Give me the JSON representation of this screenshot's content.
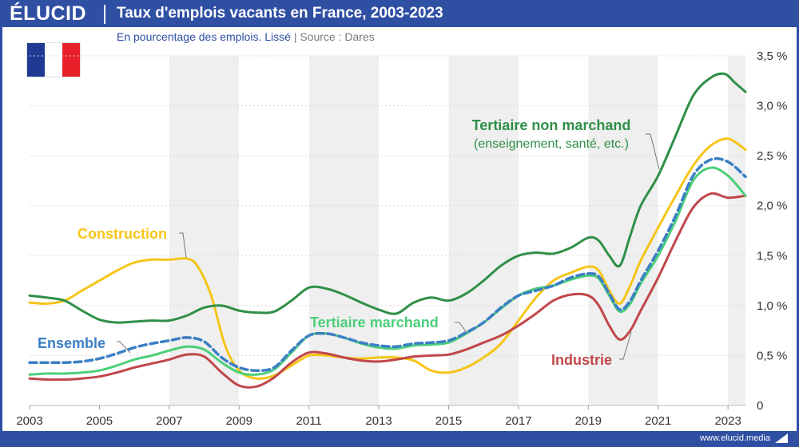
{
  "header": {
    "brand": "ÉLUCID",
    "title": "Taux d'emplois vacants en France, 2003-2023"
  },
  "subtitle": {
    "text": "En pourcentage des emplois. Lissé",
    "separator": "|",
    "source": "Source : Dares"
  },
  "footer": {
    "url": "www.elucid.media"
  },
  "flag": {
    "colors": [
      "#1f3a93",
      "#ffffff",
      "#e8202a"
    ]
  },
  "chart_data": {
    "type": "line",
    "title": "Taux d'emplois vacants en France, 2003-2023",
    "subtitle": "En pourcentage des emplois. Lissé",
    "xlim": [
      2003,
      2023.5
    ],
    "ylim": [
      0,
      3.5
    ],
    "x_ticks": [
      {
        "value": 2003,
        "label": "2003"
      },
      {
        "value": 2005,
        "label": "2005"
      },
      {
        "value": 2007,
        "label": "2007"
      },
      {
        "value": 2009,
        "label": "2009"
      },
      {
        "value": 2011,
        "label": "2011"
      },
      {
        "value": 2013,
        "label": "2013"
      },
      {
        "value": 2015,
        "label": "2015"
      },
      {
        "value": 2017,
        "label": "2017"
      },
      {
        "value": 2019,
        "label": "2019"
      },
      {
        "value": 2021,
        "label": "2021"
      },
      {
        "value": 2023,
        "label": "2023"
      }
    ],
    "y_ticks": [
      {
        "value": 0,
        "label": "0"
      },
      {
        "value": 0.5,
        "label": "0,5 %"
      },
      {
        "value": 1.0,
        "label": "1,0 %"
      },
      {
        "value": 1.5,
        "label": "1,5 %"
      },
      {
        "value": 2.0,
        "label": "2,0 %"
      },
      {
        "value": 2.5,
        "label": "2,5 %"
      },
      {
        "value": 3.0,
        "label": "3,0 %"
      },
      {
        "value": 3.5,
        "label": "3,5 %"
      }
    ],
    "shaded_bands": [
      [
        2007,
        2009
      ],
      [
        2011,
        2013
      ],
      [
        2015,
        2017
      ],
      [
        2019,
        2021
      ],
      [
        2023,
        2023.5
      ]
    ],
    "series": [
      {
        "key": "construction",
        "name": "Construction",
        "color": "#f5c518",
        "dashed": false,
        "label_lines": [
          "Construction"
        ],
        "points": [
          [
            2003,
            1.03
          ],
          [
            2003.5,
            1.02
          ],
          [
            2004,
            1.05
          ],
          [
            2004.5,
            1.15
          ],
          [
            2005,
            1.25
          ],
          [
            2005.5,
            1.35
          ],
          [
            2006,
            1.43
          ],
          [
            2006.5,
            1.46
          ],
          [
            2007,
            1.46
          ],
          [
            2007.5,
            1.47
          ],
          [
            2007.8,
            1.4
          ],
          [
            2008.2,
            1.1
          ],
          [
            2008.6,
            0.6
          ],
          [
            2009,
            0.35
          ],
          [
            2009.5,
            0.27
          ],
          [
            2010,
            0.3
          ],
          [
            2010.5,
            0.4
          ],
          [
            2011,
            0.5
          ],
          [
            2011.5,
            0.5
          ],
          [
            2012,
            0.48
          ],
          [
            2012.5,
            0.47
          ],
          [
            2013,
            0.48
          ],
          [
            2013.5,
            0.48
          ],
          [
            2014,
            0.45
          ],
          [
            2014.5,
            0.35
          ],
          [
            2015,
            0.33
          ],
          [
            2015.5,
            0.38
          ],
          [
            2016,
            0.48
          ],
          [
            2016.5,
            0.62
          ],
          [
            2017,
            0.85
          ],
          [
            2017.5,
            1.08
          ],
          [
            2018,
            1.25
          ],
          [
            2018.5,
            1.33
          ],
          [
            2019,
            1.39
          ],
          [
            2019.3,
            1.35
          ],
          [
            2019.6,
            1.15
          ],
          [
            2019.9,
            1.02
          ],
          [
            2020.2,
            1.2
          ],
          [
            2020.5,
            1.45
          ],
          [
            2021,
            1.78
          ],
          [
            2021.5,
            2.1
          ],
          [
            2022,
            2.4
          ],
          [
            2022.5,
            2.6
          ],
          [
            2023,
            2.67
          ],
          [
            2023.5,
            2.56
          ]
        ]
      },
      {
        "key": "tertiaire-nm",
        "name": "Tertiaire non marchand",
        "color": "#2f8f47",
        "dashed": false,
        "label_lines": [
          "Tertiaire non marchand",
          "(enseignement, santé, etc.)"
        ],
        "points": [
          [
            2003,
            1.1
          ],
          [
            2003.5,
            1.08
          ],
          [
            2004,
            1.05
          ],
          [
            2004.5,
            0.95
          ],
          [
            2005,
            0.86
          ],
          [
            2005.5,
            0.83
          ],
          [
            2006,
            0.84
          ],
          [
            2006.5,
            0.85
          ],
          [
            2007,
            0.85
          ],
          [
            2007.5,
            0.9
          ],
          [
            2008,
            0.98
          ],
          [
            2008.5,
            1.0
          ],
          [
            2009,
            0.95
          ],
          [
            2009.5,
            0.93
          ],
          [
            2010,
            0.94
          ],
          [
            2010.5,
            1.05
          ],
          [
            2011,
            1.18
          ],
          [
            2011.5,
            1.17
          ],
          [
            2012,
            1.11
          ],
          [
            2012.5,
            1.03
          ],
          [
            2013,
            0.96
          ],
          [
            2013.5,
            0.92
          ],
          [
            2014,
            1.03
          ],
          [
            2014.5,
            1.08
          ],
          [
            2015,
            1.05
          ],
          [
            2015.5,
            1.12
          ],
          [
            2016,
            1.25
          ],
          [
            2016.5,
            1.4
          ],
          [
            2017,
            1.5
          ],
          [
            2017.5,
            1.53
          ],
          [
            2018,
            1.52
          ],
          [
            2018.5,
            1.58
          ],
          [
            2019,
            1.68
          ],
          [
            2019.3,
            1.65
          ],
          [
            2019.6,
            1.5
          ],
          [
            2019.9,
            1.4
          ],
          [
            2020.2,
            1.7
          ],
          [
            2020.5,
            2.0
          ],
          [
            2021,
            2.3
          ],
          [
            2021.5,
            2.7
          ],
          [
            2022,
            3.1
          ],
          [
            2022.5,
            3.28
          ],
          [
            2022.9,
            3.32
          ],
          [
            2023.2,
            3.23
          ],
          [
            2023.5,
            3.14
          ]
        ]
      },
      {
        "key": "ensemble",
        "name": "Ensemble",
        "color": "#3b7fc4",
        "dashed": true,
        "label_lines": [
          "Ensemble"
        ],
        "points": [
          [
            2003,
            0.43
          ],
          [
            2003.5,
            0.43
          ],
          [
            2004,
            0.43
          ],
          [
            2004.5,
            0.44
          ],
          [
            2005,
            0.47
          ],
          [
            2005.5,
            0.52
          ],
          [
            2006,
            0.58
          ],
          [
            2006.5,
            0.62
          ],
          [
            2007,
            0.65
          ],
          [
            2007.5,
            0.68
          ],
          [
            2008,
            0.64
          ],
          [
            2008.5,
            0.48
          ],
          [
            2009,
            0.38
          ],
          [
            2009.5,
            0.35
          ],
          [
            2010,
            0.38
          ],
          [
            2010.5,
            0.55
          ],
          [
            2011,
            0.7
          ],
          [
            2011.5,
            0.72
          ],
          [
            2012,
            0.68
          ],
          [
            2012.5,
            0.63
          ],
          [
            2013,
            0.6
          ],
          [
            2013.5,
            0.59
          ],
          [
            2014,
            0.62
          ],
          [
            2014.5,
            0.63
          ],
          [
            2015,
            0.65
          ],
          [
            2015.5,
            0.73
          ],
          [
            2016,
            0.83
          ],
          [
            2016.5,
            0.98
          ],
          [
            2017,
            1.1
          ],
          [
            2017.5,
            1.15
          ],
          [
            2018,
            1.2
          ],
          [
            2018.5,
            1.28
          ],
          [
            2019,
            1.32
          ],
          [
            2019.3,
            1.29
          ],
          [
            2019.6,
            1.12
          ],
          [
            2019.9,
            0.96
          ],
          [
            2020.2,
            1.05
          ],
          [
            2020.5,
            1.25
          ],
          [
            2021,
            1.55
          ],
          [
            2021.5,
            1.9
          ],
          [
            2022,
            2.3
          ],
          [
            2022.5,
            2.46
          ],
          [
            2023,
            2.44
          ],
          [
            2023.5,
            2.29
          ]
        ]
      },
      {
        "key": "tertiaire-m",
        "name": "Tertiaire marchand",
        "color": "#4ccf7a",
        "dashed": false,
        "label_lines": [
          "Tertiaire marchand"
        ],
        "points": [
          [
            2003,
            0.31
          ],
          [
            2003.5,
            0.32
          ],
          [
            2004,
            0.32
          ],
          [
            2004.5,
            0.33
          ],
          [
            2005,
            0.35
          ],
          [
            2005.5,
            0.4
          ],
          [
            2006,
            0.46
          ],
          [
            2006.5,
            0.5
          ],
          [
            2007,
            0.55
          ],
          [
            2007.5,
            0.59
          ],
          [
            2008,
            0.56
          ],
          [
            2008.5,
            0.43
          ],
          [
            2009,
            0.33
          ],
          [
            2009.5,
            0.31
          ],
          [
            2010,
            0.36
          ],
          [
            2010.5,
            0.53
          ],
          [
            2011,
            0.7
          ],
          [
            2011.5,
            0.72
          ],
          [
            2012,
            0.68
          ],
          [
            2012.5,
            0.62
          ],
          [
            2013,
            0.58
          ],
          [
            2013.5,
            0.57
          ],
          [
            2014,
            0.6
          ],
          [
            2014.5,
            0.61
          ],
          [
            2015,
            0.63
          ],
          [
            2015.5,
            0.72
          ],
          [
            2016,
            0.83
          ],
          [
            2016.5,
            0.97
          ],
          [
            2017,
            1.1
          ],
          [
            2017.5,
            1.17
          ],
          [
            2018,
            1.2
          ],
          [
            2018.5,
            1.26
          ],
          [
            2019,
            1.3
          ],
          [
            2019.3,
            1.27
          ],
          [
            2019.6,
            1.1
          ],
          [
            2019.9,
            0.94
          ],
          [
            2020.2,
            1.02
          ],
          [
            2020.5,
            1.22
          ],
          [
            2021,
            1.5
          ],
          [
            2021.5,
            1.85
          ],
          [
            2022,
            2.25
          ],
          [
            2022.5,
            2.38
          ],
          [
            2023,
            2.3
          ],
          [
            2023.5,
            2.1
          ]
        ]
      },
      {
        "key": "industrie",
        "name": "Industrie",
        "color": "#c0474a",
        "dashed": false,
        "label_lines": [
          "Industrie"
        ],
        "points": [
          [
            2003,
            0.27
          ],
          [
            2003.5,
            0.26
          ],
          [
            2004,
            0.26
          ],
          [
            2004.5,
            0.27
          ],
          [
            2005,
            0.29
          ],
          [
            2005.5,
            0.33
          ],
          [
            2006,
            0.38
          ],
          [
            2006.5,
            0.42
          ],
          [
            2007,
            0.46
          ],
          [
            2007.5,
            0.51
          ],
          [
            2008,
            0.49
          ],
          [
            2008.5,
            0.33
          ],
          [
            2009,
            0.2
          ],
          [
            2009.5,
            0.19
          ],
          [
            2010,
            0.28
          ],
          [
            2010.5,
            0.43
          ],
          [
            2011,
            0.53
          ],
          [
            2011.5,
            0.52
          ],
          [
            2012,
            0.48
          ],
          [
            2012.5,
            0.45
          ],
          [
            2013,
            0.44
          ],
          [
            2013.5,
            0.46
          ],
          [
            2014,
            0.49
          ],
          [
            2014.5,
            0.5
          ],
          [
            2015,
            0.51
          ],
          [
            2015.5,
            0.56
          ],
          [
            2016,
            0.63
          ],
          [
            2016.5,
            0.7
          ],
          [
            2017,
            0.8
          ],
          [
            2017.5,
            0.92
          ],
          [
            2018,
            1.05
          ],
          [
            2018.5,
            1.11
          ],
          [
            2019,
            1.1
          ],
          [
            2019.3,
            1.0
          ],
          [
            2019.6,
            0.8
          ],
          [
            2019.9,
            0.66
          ],
          [
            2020.2,
            0.75
          ],
          [
            2020.5,
            0.95
          ],
          [
            2021,
            1.28
          ],
          [
            2021.5,
            1.65
          ],
          [
            2022,
            1.98
          ],
          [
            2022.5,
            2.12
          ],
          [
            2023,
            2.08
          ],
          [
            2023.5,
            2.1
          ]
        ]
      }
    ]
  }
}
